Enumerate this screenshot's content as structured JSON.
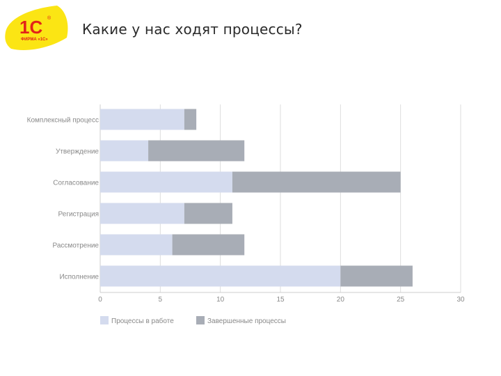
{
  "header": {
    "title": "Какие у нас ходят процессы?",
    "logo_text": "1С",
    "logo_subtext": "ФИРМА «1С»"
  },
  "colors": {
    "in_progress": "#d4dbee",
    "completed": "#a8adb6",
    "grid": "#dddddd",
    "logo_bg": "#fbe514",
    "logo_red": "#e2231a"
  },
  "chart_data": {
    "type": "bar",
    "orientation": "horizontal",
    "stacked": true,
    "categories": [
      "Комплексный процесс",
      "Утверждение",
      "Согласование",
      "Регистрация",
      "Рассмотрение",
      "Исполнение"
    ],
    "series": [
      {
        "name": "Процессы в работе",
        "values": [
          7,
          4,
          11,
          7,
          6,
          20
        ]
      },
      {
        "name": "Завершенные процессы",
        "values": [
          1,
          8,
          14,
          4,
          6,
          6
        ]
      }
    ],
    "xlim": [
      0,
      30
    ],
    "xticks": [
      0,
      5,
      10,
      15,
      20,
      25,
      30
    ],
    "grid": true,
    "legend_position": "bottom-left"
  }
}
